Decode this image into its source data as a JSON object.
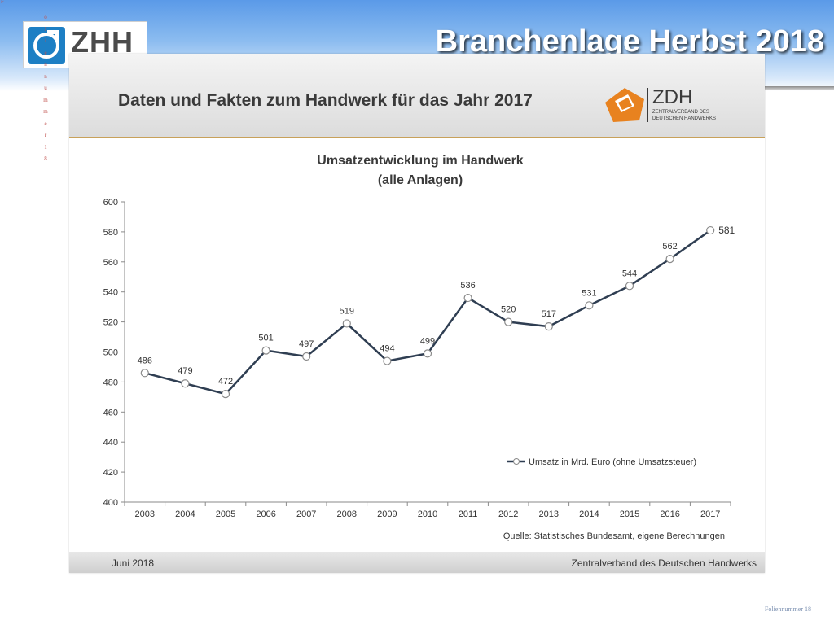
{
  "slide": {
    "title": "Branchenlage Herbst 2018",
    "logo_text": "ZHH",
    "vertical_letters": [
      "o",
      "l",
      "i",
      "e",
      "n",
      "n",
      "u",
      "m",
      "m",
      "e",
      "r",
      "1",
      "8"
    ],
    "corner_letter": "F",
    "slide_number": "Foliennummer 18"
  },
  "panel": {
    "heading": "Daten und Fakten zum Handwerk für das Jahr 2017",
    "zdh_logo": {
      "word": "ZDH",
      "subline_1": "ZENTRALVERBAND DES",
      "subline_2": "DEUTSCHEN HANDWERKS"
    },
    "footer_left": "Juni 2018",
    "footer_right": "Zentralverband  des Deutschen Handwerks"
  },
  "chart_data": {
    "type": "line",
    "title": "Umsatzentwicklung  im Handwerk",
    "subtitle": "(alle Anlagen)",
    "x": [
      "2003",
      "2004",
      "2005",
      "2006",
      "2007",
      "2008",
      "2009",
      "2010",
      "2011",
      "2012",
      "2013",
      "2014",
      "2015",
      "2016",
      "2017"
    ],
    "series": [
      {
        "name": "Umsatz in Mrd. Euro (ohne Umsatzsteuer)",
        "values": [
          486,
          479,
          472,
          501,
          497,
          519,
          494,
          499,
          536,
          520,
          517,
          531,
          544,
          562,
          581
        ]
      }
    ],
    "ylim": [
      400,
      600
    ],
    "yticks": [
      400,
      420,
      440,
      460,
      480,
      500,
      520,
      540,
      560,
      580,
      600
    ],
    "grid": false,
    "legend_position": "bottom-right",
    "source": "Quelle: Statistisches Bundesamt, eigene Berechnungen",
    "line_color": "#2f3e52",
    "marker_fill": "#ffffff"
  }
}
